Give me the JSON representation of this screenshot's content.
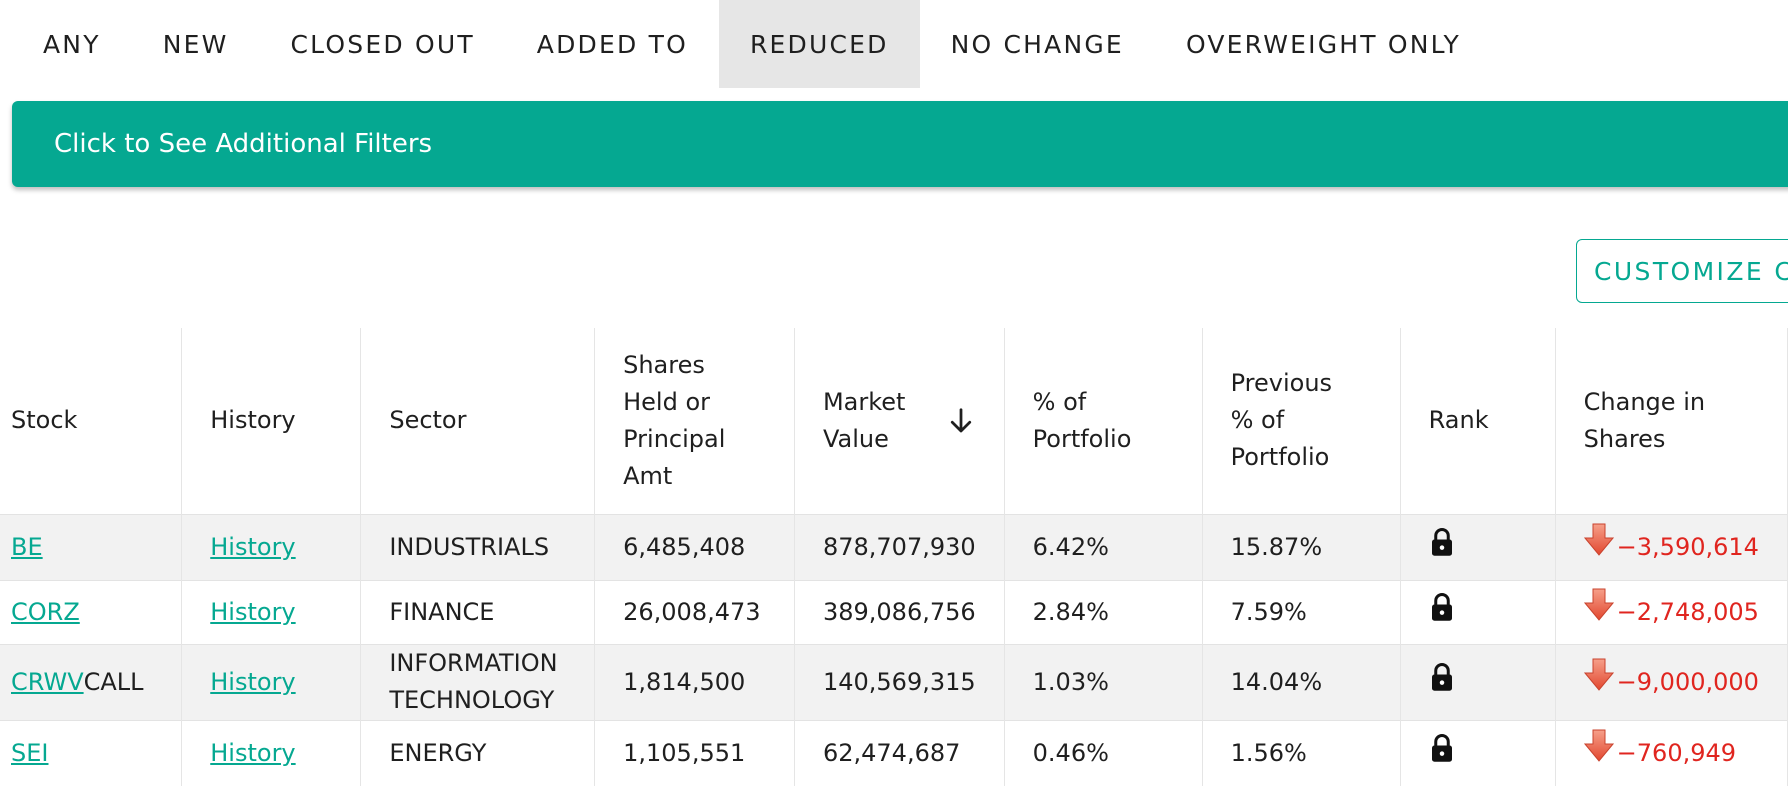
{
  "filter_tabs": [
    {
      "label": "ANY",
      "active": false
    },
    {
      "label": "NEW",
      "active": false
    },
    {
      "label": "CLOSED OUT",
      "active": false
    },
    {
      "label": "ADDED TO",
      "active": false
    },
    {
      "label": "REDUCED",
      "active": true
    },
    {
      "label": "NO CHANGE",
      "active": false
    },
    {
      "label": "OVERWEIGHT ONLY",
      "active": false
    }
  ],
  "filters_banner": {
    "label": "Click to See Additional Filters"
  },
  "customize_button": {
    "label": "CUSTOMIZE C"
  },
  "table": {
    "columns": [
      {
        "key": "stock",
        "label": "Stock"
      },
      {
        "key": "history",
        "label": "History"
      },
      {
        "key": "sector",
        "label": "Sector"
      },
      {
        "key": "shares",
        "label": "Shares Held or Principal Amt"
      },
      {
        "key": "market_value",
        "label": "Market Value",
        "sorted": "desc"
      },
      {
        "key": "pct_portfolio",
        "label": "% of Portfolio"
      },
      {
        "key": "prev_pct_portfolio",
        "label": "Previous % of Portfolio"
      },
      {
        "key": "rank",
        "label": "Rank"
      },
      {
        "key": "change_shares",
        "label": "Change in Shares"
      }
    ],
    "rows": [
      {
        "stock": "BE",
        "stock_suffix": "",
        "history": "History",
        "sector": "INDUSTRIALS",
        "shares": "6,485,408",
        "market_value": "878,707,930",
        "pct_portfolio": "6.42%",
        "prev_pct_portfolio": "15.87%",
        "rank_icon": "lock-icon",
        "change_shares": "−3,590,614"
      },
      {
        "stock": "CORZ",
        "stock_suffix": "",
        "history": "History",
        "sector": "FINANCE",
        "shares": "26,008,473",
        "market_value": "389,086,756",
        "pct_portfolio": "2.84%",
        "prev_pct_portfolio": "7.59%",
        "rank_icon": "lock-icon",
        "change_shares": "−2,748,005"
      },
      {
        "stock": "CRWV",
        "stock_suffix": "CALL",
        "history": "History",
        "sector": "INFORMATION TECHNOLOGY",
        "shares": "1,814,500",
        "market_value": "140,569,315",
        "pct_portfolio": "1.03%",
        "prev_pct_portfolio": "14.04%",
        "rank_icon": "lock-icon",
        "change_shares": "−9,000,000"
      },
      {
        "stock": "SEI",
        "stock_suffix": "",
        "history": "History",
        "sector": "ENERGY",
        "shares": "1,105,551",
        "market_value": "62,474,687",
        "pct_portfolio": "0.46%",
        "prev_pct_portfolio": "1.56%",
        "rank_icon": "lock-icon",
        "change_shares": "−760,949"
      }
    ]
  },
  "colors": {
    "accent": "#05a891",
    "active_tab_bg": "#e6e6e6",
    "negative_change": "#e0251f",
    "row_stripe": "#f2f2f2"
  }
}
